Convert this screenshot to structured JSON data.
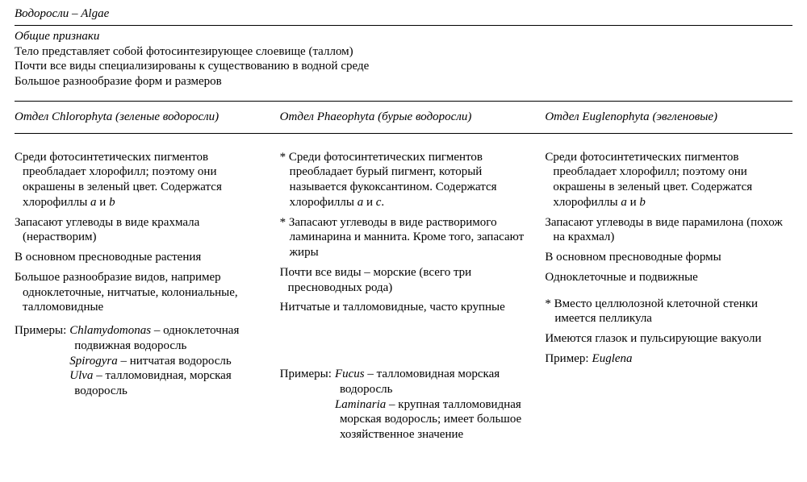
{
  "title_ru": "Водоросли",
  "title_sep": " – ",
  "title_lat": "Algae",
  "general": {
    "header": "Общие признаки",
    "lines": [
      "Тело представляет собой фотосинтезирующее слоевище (таллом)",
      "Почти все виды специализированы к существованию в водной среде",
      "Большое разнообразие форм и размеров"
    ]
  },
  "columns": [
    {
      "header_prefix": "Отдел ",
      "header_taxon": "Chlorophyta",
      "header_suffix": " (зеленые водоросли)",
      "paras": [
        {
          "star": false,
          "html": "Среди фотосинтетических пигментов преобладает хлорофилл; поэтому они окрашены в зеленый цвет. Содержатся хлорофиллы <span class='it'>a</span> и <span class='it'>b</span>"
        },
        {
          "star": false,
          "html": "Запасают углеводы в виде крахмала (нерастворим)"
        },
        {
          "star": false,
          "html": "В основном пресноводные растения"
        },
        {
          "star": false,
          "html": "Большое разнообразие видов, например одноклеточные, нитчатые, колониальные, талломовидные"
        }
      ],
      "examples_label": "Примеры:",
      "examples": [
        {
          "html": "<span class='it'>Chlamydomonas</span> – одноклеточная подвижная водоросль"
        },
        {
          "html": "<span class='it'>Spirogyra</span> – нитчатая водоросль"
        },
        {
          "html": "<span class='it'>Ulva</span> – талломовидная, морская водоросль"
        }
      ]
    },
    {
      "header_prefix": "Отдел ",
      "header_taxon": "Phaeophyta",
      "header_suffix": " (бурые водоросли)",
      "paras": [
        {
          "star": true,
          "html": "Среди фотосинтетических пигментов преобладает бурый пигмент, который называется фукоксантином. Содержатся хлорофиллы <span class='it'>a</span> и <span class='it'>c</span>."
        },
        {
          "star": true,
          "html": "Запасают углеводы в виде растворимого ламинарина и маннита. Кроме того, запасают жиры"
        },
        {
          "star": false,
          "html": "Почти все виды – морские (всего три пресноводных рода)"
        },
        {
          "star": false,
          "html": "Нитчатые и талломовидные, часто крупные"
        }
      ],
      "examples_label": "Примеры:",
      "examples": [
        {
          "html": "<span class='it'>Fucus</span> – талломовидная морская водоросль"
        },
        {
          "html": "<span class='it'>Laminaria</span> – крупная талломовидная морская водоросль; имеет большое хозяйственное значение"
        }
      ]
    },
    {
      "header_prefix": "Отдел ",
      "header_taxon": "Euglenophyta",
      "header_suffix": " (эвгленовые)",
      "paras": [
        {
          "star": false,
          "html": "Среди фотосинтетических пигментов преобладает хлорофилл; поэтому они окрашены в зеленый цвет. Содержатся хлорофиллы <span class='it'>a</span> и <span class='it'>b</span>"
        },
        {
          "star": false,
          "html": "Запасают углеводы в виде парамилона (похож на крахмал)"
        },
        {
          "star": false,
          "html": "В основном пресноводные формы"
        },
        {
          "star": false,
          "html": "Одноклеточные и подвижные"
        },
        {
          "star": true,
          "html": "Вместо целлюлозной клеточной стенки имеется пелликула"
        },
        {
          "star": false,
          "html": "Имеются глазок и пульсирующие вакуоли"
        }
      ],
      "examples_label": "Пример:",
      "examples": [
        {
          "html": "<span class='it'>Euglena</span>"
        }
      ]
    }
  ]
}
